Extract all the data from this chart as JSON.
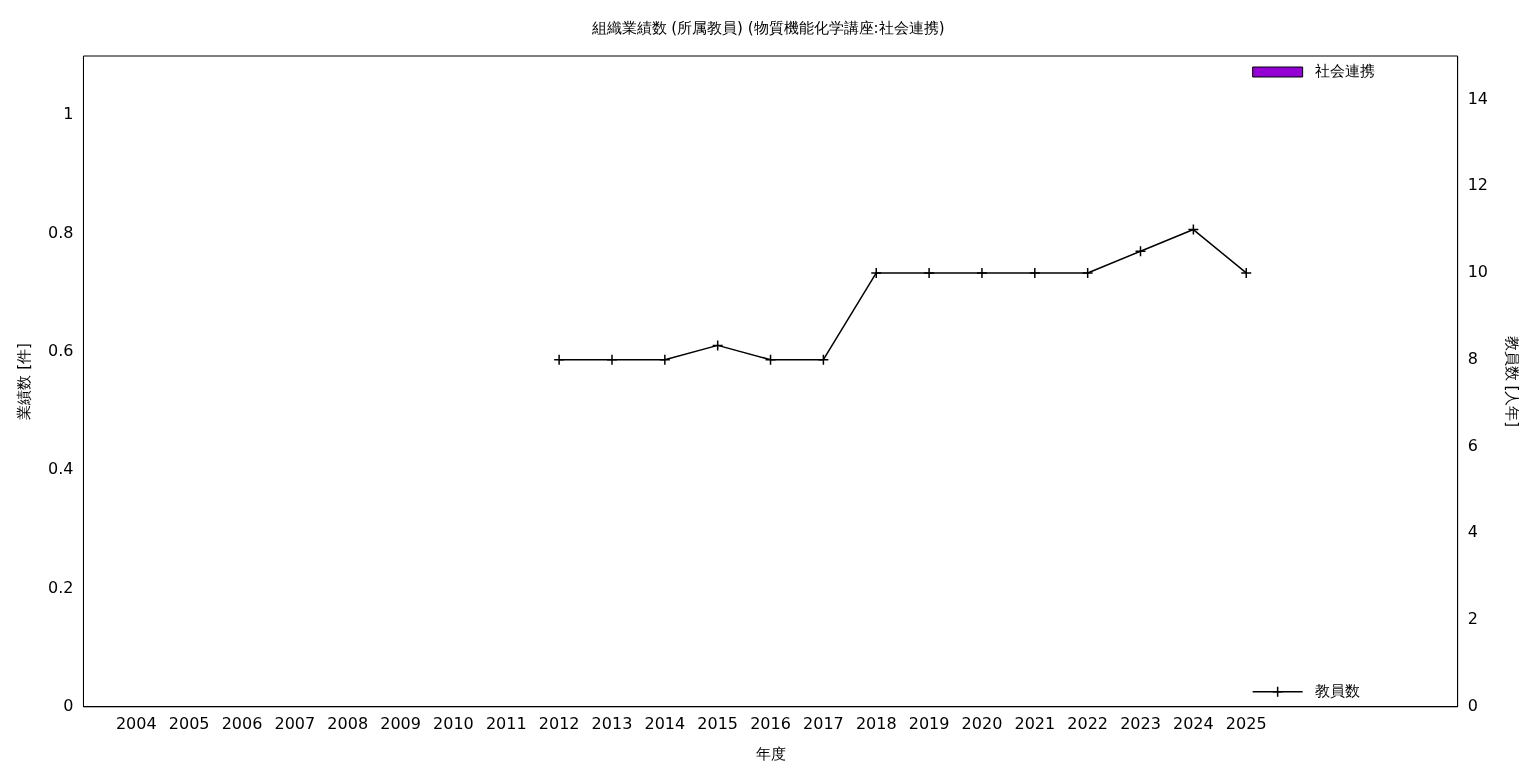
{
  "chart_data": {
    "type": "bar",
    "title": "組織業績数 (所属教員) (物質機能化学講座:社会連携)",
    "xlabel": "年度",
    "ylabel": "業績数 [件]",
    "y2label": "教員数 [人年]",
    "categories": [
      null,
      "2004",
      "2005",
      "2006",
      "2007",
      "2008",
      "2009",
      "2010",
      "2011",
      "2012",
      "2013",
      "2014",
      "2015",
      "2016",
      "2017",
      "2018",
      "2019",
      "2020",
      "2021",
      "2022",
      "2023",
      "2024",
      "2025",
      null,
      null,
      null,
      null
    ],
    "series": [
      {
        "name": "社会連携",
        "color": "#9400d3",
        "values": [
          null,
          0,
          0,
          0,
          0,
          0,
          0,
          0,
          0,
          0,
          0,
          0,
          0,
          0,
          0,
          0,
          0,
          0,
          0,
          0,
          0,
          0,
          0,
          null,
          null,
          null,
          null
        ]
      },
      {
        "name": "教員数",
        "type": "line",
        "axis": "y2",
        "color": "#000000",
        "values": [
          null,
          null,
          null,
          null,
          null,
          null,
          null,
          null,
          null,
          8,
          8,
          8,
          8.33,
          8,
          8,
          10,
          10,
          10,
          10,
          10,
          10.5,
          11,
          10,
          null,
          null,
          null,
          null
        ]
      }
    ],
    "ylim": [
      0,
      1.1
    ],
    "yticks": [
      0,
      0.2,
      0.4,
      0.6,
      0.8,
      1
    ],
    "y2lim": [
      0,
      15
    ],
    "y2ticks": [
      0,
      2,
      4,
      6,
      8,
      10,
      12,
      14
    ],
    "grid": false,
    "legend": "right",
    "marker": "cross",
    "line_style": "solid"
  }
}
